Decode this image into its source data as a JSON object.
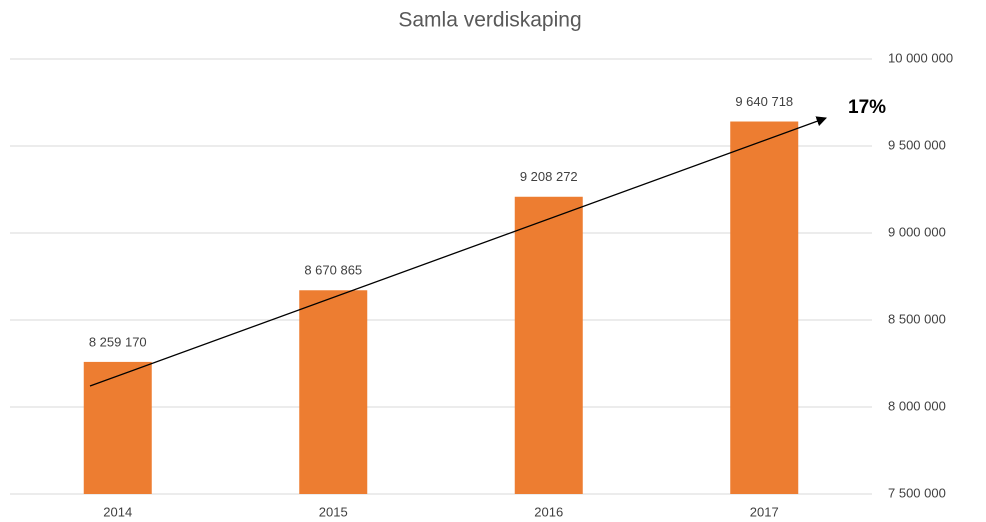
{
  "chart_data": {
    "type": "bar",
    "title": "Samla verdiskaping",
    "categories": [
      "2014",
      "2015",
      "2016",
      "2017"
    ],
    "values": [
      8259170,
      8670865,
      9208272,
      9640718
    ],
    "value_labels": [
      "8 259 170",
      "8 670 865",
      "9 208 272",
      "9 640 718"
    ],
    "color": "#ed7d31",
    "ylim": [
      7500000,
      10000000
    ],
    "yticks": [
      {
        "value": 7500000,
        "label": "7 500 000"
      },
      {
        "value": 8000000,
        "label": "8 000 000"
      },
      {
        "value": 8500000,
        "label": "8 500 000"
      },
      {
        "value": 9000000,
        "label": "9 000 000"
      },
      {
        "value": 9500000,
        "label": "9 500 000"
      },
      {
        "value": 10000000,
        "label": "10 000 000"
      }
    ],
    "y_axis_side": "right",
    "grid": true,
    "annotation": "17%"
  }
}
